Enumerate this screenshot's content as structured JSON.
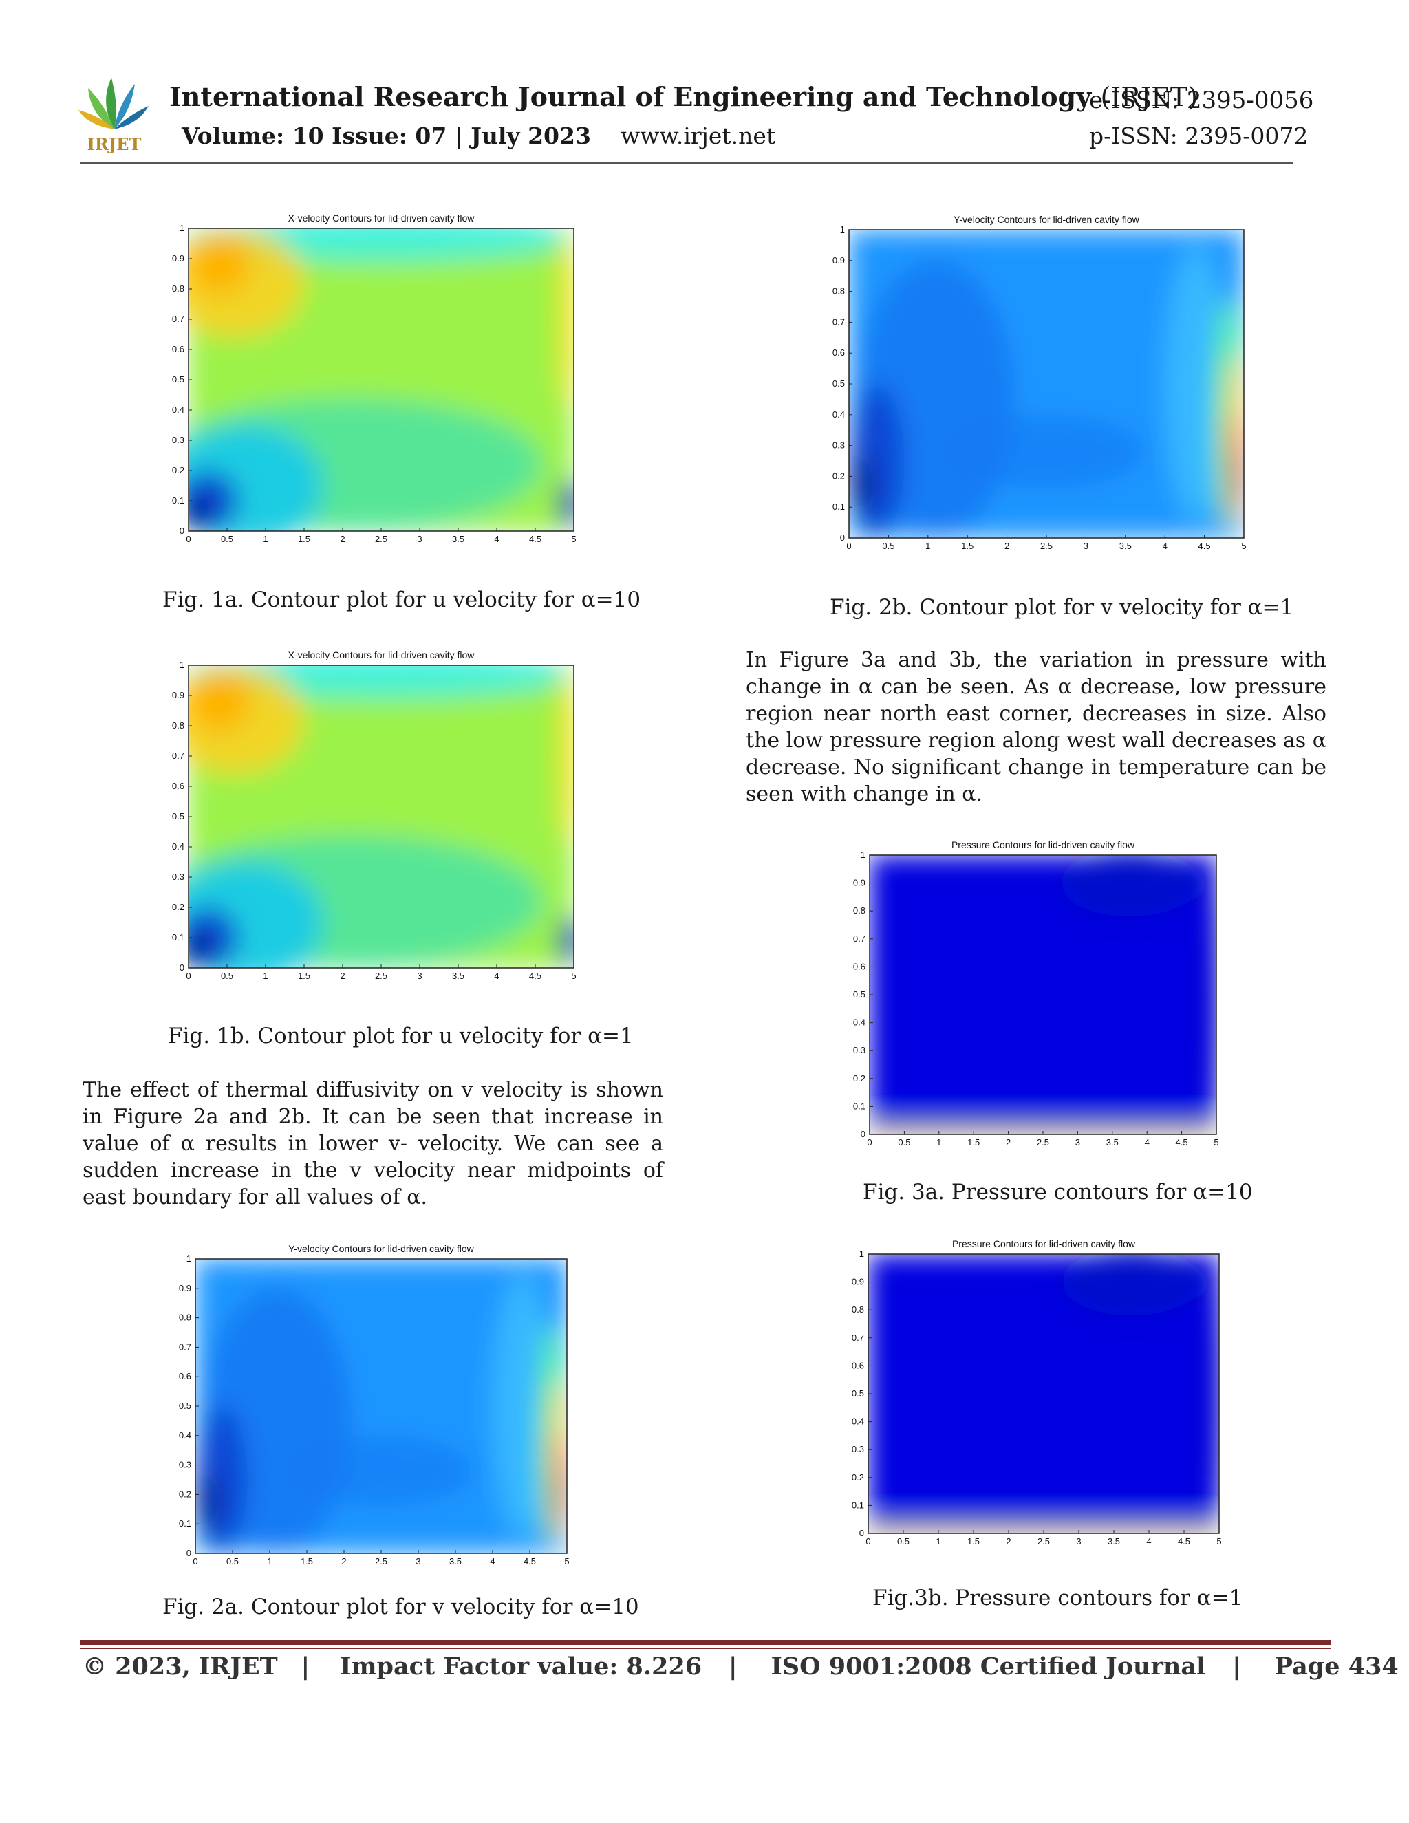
{
  "header": {
    "logo_text": "IRJET",
    "journal_title": "International Research Journal of Engineering and Technology",
    "journal_abbr": "(IRJET)",
    "eissn": "e-ISSN: 2395-0056",
    "volume_issue": "Volume: 10 Issue: 07 | July 2023",
    "website": "www.irjet.net",
    "pissn": "p-ISSN: 2395-0072"
  },
  "figures": [
    {
      "id": "fig1a",
      "caption": "Fig. 1a. Contour plot for u velocity for α=10"
    },
    {
      "id": "fig1b",
      "caption": "Fig. 1b. Contour plot for u velocity for α=1"
    },
    {
      "id": "fig2a",
      "caption": "Fig. 2a. Contour plot for v velocity for α=10"
    },
    {
      "id": "fig2b",
      "caption": "Fig.  2b. Contour plot for v velocity for α=1"
    },
    {
      "id": "fig3a",
      "caption": "Fig.  3a. Pressure contours for α=10"
    },
    {
      "id": "fig3b",
      "caption": "Fig.3b. Pressure contours for α=1"
    }
  ],
  "chart_data": [
    {
      "id": "fig1a",
      "type": "heatmap",
      "title": "X-velocity Contours for lid-driven cavity flow",
      "xlim": [
        0,
        5
      ],
      "ylim": [
        0,
        1
      ],
      "xticks": [
        "0",
        "0.5",
        "1",
        "1.5",
        "2",
        "2.5",
        "3",
        "3.5",
        "4",
        "4.5",
        "5"
      ],
      "yticks": [
        "0",
        "0.1",
        "0.2",
        "0.3",
        "0.4",
        "0.5",
        "0.6",
        "0.7",
        "0.8",
        "0.9",
        "1"
      ],
      "colormap": "jet"
    },
    {
      "id": "fig1b",
      "type": "heatmap",
      "title": "X-velocity Contours for lid-driven cavity flow",
      "xlim": [
        0,
        5
      ],
      "ylim": [
        0,
        1
      ],
      "xticks": [
        "0",
        "0.5",
        "1",
        "1.5",
        "2",
        "2.5",
        "3",
        "3.5",
        "4",
        "4.5",
        "5"
      ],
      "yticks": [
        "0",
        "0.1",
        "0.2",
        "0.3",
        "0.4",
        "0.5",
        "0.6",
        "0.7",
        "0.8",
        "0.9",
        "1"
      ],
      "colormap": "jet"
    },
    {
      "id": "fig2a",
      "type": "heatmap",
      "title": "Y-velocity Contours for lid-driven cavity flow",
      "xlim": [
        0,
        5
      ],
      "ylim": [
        0,
        1
      ],
      "xticks": [
        "0",
        "0.5",
        "1",
        "1.5",
        "2",
        "2.5",
        "3",
        "3.5",
        "4",
        "4.5",
        "5"
      ],
      "yticks": [
        "0",
        "0.1",
        "0.2",
        "0.3",
        "0.4",
        "0.5",
        "0.6",
        "0.7",
        "0.8",
        "0.9",
        "1"
      ],
      "colormap": "jet"
    },
    {
      "id": "fig2b",
      "type": "heatmap",
      "title": "Y-velocity Contours for lid-driven cavity flow",
      "xlim": [
        0,
        5
      ],
      "ylim": [
        0,
        1
      ],
      "xticks": [
        "0",
        "0.5",
        "1",
        "1.5",
        "2",
        "2.5",
        "3",
        "3.5",
        "4",
        "4.5",
        "5"
      ],
      "yticks": [
        "0",
        "0.1",
        "0.2",
        "0.3",
        "0.4",
        "0.5",
        "0.6",
        "0.7",
        "0.8",
        "0.9",
        "1"
      ],
      "colormap": "jet"
    },
    {
      "id": "fig3a",
      "type": "heatmap",
      "title": "Pressure Contours for lid-driven cavity flow",
      "xlim": [
        0,
        5
      ],
      "ylim": [
        0,
        1
      ],
      "xticks": [
        "0",
        "0.5",
        "1",
        "1.5",
        "2",
        "2.5",
        "3",
        "3.5",
        "4",
        "4.5",
        "5"
      ],
      "yticks": [
        "0",
        "0.1",
        "0.2",
        "0.3",
        "0.4",
        "0.5",
        "0.6",
        "0.7",
        "0.8",
        "0.9",
        "1"
      ],
      "colormap": "jet"
    },
    {
      "id": "fig3b",
      "type": "heatmap",
      "title": "Pressure Contours for lid-driven cavity flow",
      "xlim": [
        0,
        5
      ],
      "ylim": [
        0,
        1
      ],
      "xticks": [
        "0",
        "0.5",
        "1",
        "1.5",
        "2",
        "2.5",
        "3",
        "3.5",
        "4",
        "4.5",
        "5"
      ],
      "yticks": [
        "0",
        "0.1",
        "0.2",
        "0.3",
        "0.4",
        "0.5",
        "0.6",
        "0.7",
        "0.8",
        "0.9",
        "1"
      ],
      "colormap": "jet"
    }
  ],
  "body": {
    "para_v_velocity": "The effect of thermal diffusivity on v velocity is shown in Figure 2a and 2b. It can be seen that increase in value of α results in lower v- velocity. We can see a sudden increase in the v velocity near midpoints of east boundary for all values of α.",
    "para_pressure": "In Figure 3a and 3b, the variation in pressure with change in α can be seen. As α decrease, low pressure region near north east corner, decreases in size. Also the low pressure region along west wall decreases as α decrease. No significant change in temperature can be seen with change in α."
  },
  "footer": {
    "copyright": "© 2023, IRJET",
    "sep": "|",
    "impact": "Impact Factor value: 8.226",
    "iso": "ISO 9001:2008 Certified Journal",
    "page": "Page 434"
  }
}
